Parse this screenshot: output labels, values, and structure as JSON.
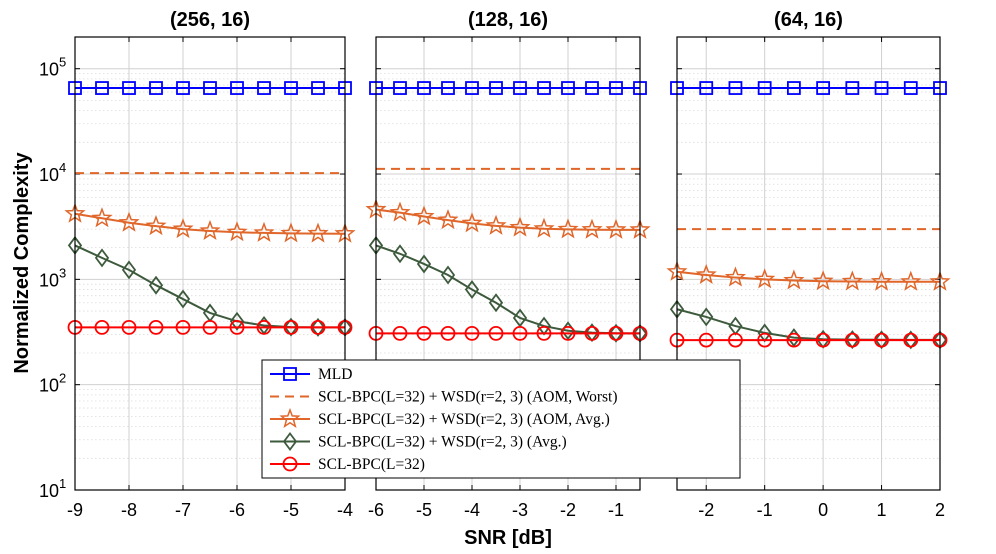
{
  "chart_data": {
    "type": "line",
    "xlabel": "SNR [dB]",
    "ylabel": "Normalized Complexity",
    "y_scale": "log",
    "ylim": [
      10,
      200000
    ],
    "y_ticks": [
      {
        "value": 10,
        "base": "10",
        "exp": "1"
      },
      {
        "value": 100,
        "base": "10",
        "exp": "2"
      },
      {
        "value": 1000,
        "base": "10",
        "exp": "3"
      },
      {
        "value": 10000,
        "base": "10",
        "exp": "4"
      },
      {
        "value": 100000,
        "base": "10",
        "exp": "5"
      }
    ],
    "grid": true,
    "legend_position": "bottom-center",
    "legend": [
      {
        "key": "mld",
        "label": "MLD",
        "color": "#0000ff",
        "marker": "square",
        "dashed": false
      },
      {
        "key": "aom_worst",
        "label": "SCL-BPC(L=32) + WSD(r=2, 3) (AOM, Worst)",
        "color": "#e0662a",
        "marker": "none",
        "dashed": true
      },
      {
        "key": "aom_avg",
        "label": "SCL-BPC(L=32) + WSD(r=2, 3) (AOM, Avg.)",
        "color": "#e0662a",
        "marker": "star",
        "dashed": false
      },
      {
        "key": "wsd_avg",
        "label": "SCL-BPC(L=32) + WSD(r=2, 3) (Avg.)",
        "color": "#3d5a3d",
        "marker": "diamond",
        "dashed": false
      },
      {
        "key": "scl",
        "label": "SCL-BPC(L=32)",
        "color": "#ff0000",
        "marker": "circle",
        "dashed": false
      }
    ],
    "subplots": [
      {
        "title": "(256, 16)",
        "xlim": [
          -9,
          -4
        ],
        "x_ticks": [
          -9,
          -8,
          -7,
          -6,
          -5,
          -4
        ],
        "x_tick_labels": [
          "-9",
          "-8",
          "-7",
          "-6",
          "-5",
          "-4"
        ],
        "x": [
          -9,
          -8.5,
          -8,
          -7.5,
          -7,
          -6.5,
          -6,
          -5.5,
          -5,
          -4.5,
          -4
        ],
        "series": {
          "mld": [
            65536,
            65536,
            65536,
            65536,
            65536,
            65536,
            65536,
            65536,
            65536,
            65536,
            65536
          ],
          "aom_worst": [
            10200,
            10200,
            10200,
            10200,
            10200,
            10200,
            10200,
            10200,
            10200,
            10200,
            10200
          ],
          "aom_avg": [
            4200,
            3800,
            3450,
            3200,
            3000,
            2880,
            2800,
            2760,
            2730,
            2720,
            2710
          ],
          "wsd_avg": [
            2100,
            1600,
            1230,
            880,
            650,
            480,
            400,
            365,
            352,
            350,
            350
          ],
          "scl": [
            350,
            350,
            350,
            350,
            350,
            350,
            350,
            350,
            350,
            350,
            350
          ]
        }
      },
      {
        "title": "(128, 16)",
        "xlim": [
          -6,
          -0.5
        ],
        "x_ticks": [
          -6,
          -5,
          -4,
          -3,
          -2,
          -1
        ],
        "x_tick_labels": [
          "-6",
          "-5",
          "-4",
          "-3",
          "-2",
          "-1"
        ],
        "x": [
          -6,
          -5.5,
          -5,
          -4.5,
          -4,
          -3.5,
          -3,
          -2.5,
          -2,
          -1.5,
          -1,
          -0.5
        ],
        "series": {
          "mld": [
            65536,
            65536,
            65536,
            65536,
            65536,
            65536,
            65536,
            65536,
            65536,
            65536,
            65536,
            65536
          ],
          "aom_worst": [
            11200,
            11200,
            11200,
            11200,
            11200,
            11200,
            11200,
            11200,
            11200,
            11200,
            11200,
            11200
          ],
          "aom_avg": [
            4600,
            4300,
            3950,
            3650,
            3400,
            3220,
            3100,
            3020,
            2980,
            2960,
            2950,
            2950
          ],
          "wsd_avg": [
            2100,
            1750,
            1400,
            1100,
            800,
            600,
            430,
            360,
            325,
            312,
            308,
            307
          ],
          "scl": [
            307,
            307,
            307,
            307,
            307,
            307,
            307,
            307,
            307,
            307,
            307,
            307
          ]
        }
      },
      {
        "title": "(64, 16)",
        "xlim": [
          -2.5,
          2
        ],
        "x_ticks": [
          -2,
          -1,
          0,
          1,
          2
        ],
        "x_tick_labels": [
          "-2",
          "-1",
          "0",
          "1",
          "2"
        ],
        "x": [
          -2.5,
          -2,
          -1.5,
          -1,
          -0.5,
          0,
          0.5,
          1,
          1.5,
          2
        ],
        "series": {
          "mld": [
            65536,
            65536,
            65536,
            65536,
            65536,
            65536,
            65536,
            65536,
            65536,
            65536
          ],
          "aom_worst": [
            3000,
            3000,
            3000,
            3000,
            3000,
            3000,
            3000,
            3000,
            3000,
            3000
          ],
          "aom_avg": [
            1180,
            1100,
            1040,
            1000,
            975,
            960,
            955,
            950,
            948,
            948
          ],
          "wsd_avg": [
            520,
            440,
            360,
            310,
            280,
            270,
            268,
            267,
            266,
            266
          ],
          "scl": [
            265,
            265,
            265,
            265,
            265,
            265,
            265,
            265,
            265,
            265
          ]
        }
      }
    ]
  }
}
